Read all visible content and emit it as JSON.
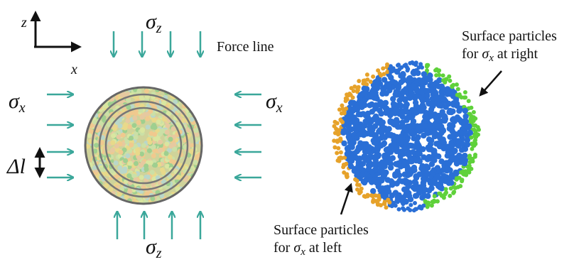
{
  "axes": {
    "z": "z",
    "x": "x"
  },
  "labels": {
    "sigma_z_top": {
      "symbol": "σ",
      "sub": "z"
    },
    "force_line": "Force line",
    "sigma_x_left": {
      "symbol": "σ",
      "sub": "x"
    },
    "sigma_x_right": {
      "symbol": "σ",
      "sub": "x"
    },
    "delta_l": "Δl",
    "sigma_z_bottom": {
      "symbol": "σ",
      "sub": "z"
    }
  },
  "annotations": {
    "right": {
      "line1": "Surface particles",
      "pre": "for",
      "symbol": "σ",
      "sub": "x",
      "post": "at right"
    },
    "left": {
      "line1": "Surface particles",
      "pre": "for",
      "symbol": "σ",
      "sub": "x",
      "post": "at left"
    }
  }
}
